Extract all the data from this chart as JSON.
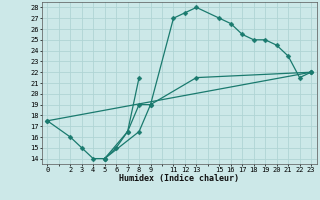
{
  "xlabel": "Humidex (Indice chaleur)",
  "xlim": [
    -0.5,
    23.5
  ],
  "ylim": [
    13.5,
    28.5
  ],
  "xtick_positions": [
    0,
    1,
    2,
    3,
    4,
    5,
    6,
    7,
    8,
    9,
    10,
    11,
    12,
    13,
    14,
    15,
    16,
    17,
    18,
    19,
    20,
    21,
    22,
    23
  ],
  "xtick_labels": [
    "0",
    "",
    "2",
    "3",
    "4",
    "5",
    "6",
    "7",
    "8",
    "9",
    "",
    "11",
    "12",
    "13",
    "",
    "15",
    "16",
    "17",
    "18",
    "19",
    "20",
    "21",
    "22",
    "23"
  ],
  "ytick_positions": [
    14,
    15,
    16,
    17,
    18,
    19,
    20,
    21,
    22,
    23,
    24,
    25,
    26,
    27,
    28
  ],
  "ytick_labels": [
    "14",
    "15",
    "16",
    "17",
    "18",
    "19",
    "20",
    "21",
    "22",
    "23",
    "24",
    "25",
    "26",
    "27",
    "28"
  ],
  "line_color": "#1a7a6e",
  "bg_color": "#cce8e8",
  "grid_color": "#b0d4d4",
  "line1_x": [
    0,
    2,
    3,
    4,
    5,
    6,
    7,
    8,
    9,
    11,
    12,
    13,
    15,
    16,
    17,
    18,
    19,
    20,
    21,
    22,
    23
  ],
  "line1_y": [
    17.5,
    16,
    15,
    14,
    14,
    15,
    16.5,
    19,
    19,
    27,
    27.5,
    28,
    27,
    26.5,
    25.5,
    25,
    25,
    24.5,
    23.5,
    21.5,
    22
  ],
  "line2_x": [
    0,
    23
  ],
  "line2_y": [
    17.5,
    22
  ],
  "line3_x": [
    5,
    8,
    9,
    13,
    23
  ],
  "line3_y": [
    14,
    16.5,
    19,
    21.5,
    22
  ],
  "line4_x": [
    5,
    7,
    8
  ],
  "line4_y": [
    14,
    16.5,
    21.5
  ],
  "marker": "D",
  "markersize": 2.5
}
